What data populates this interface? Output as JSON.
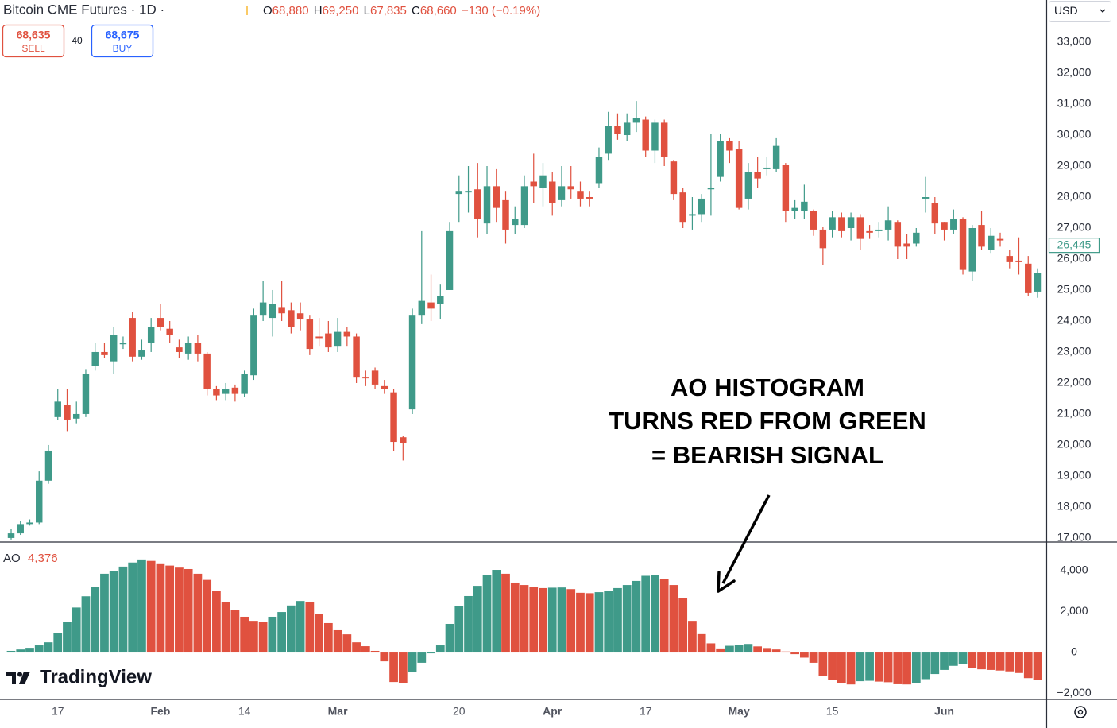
{
  "header": {
    "title": "Bitcoin CME Futures · 1D ·",
    "ohlc": [
      {
        "key": "O",
        "value": "68,880"
      },
      {
        "key": "H",
        "value": "69,250"
      },
      {
        "key": "L",
        "value": "67,835"
      },
      {
        "key": "C",
        "value": "68,660"
      }
    ],
    "change": "−130 (−0.19%)",
    "sell_price": "68,635",
    "sell_label": "SELL",
    "spread": "40",
    "buy_price": "68,675",
    "buy_label": "BUY",
    "currency": "USD",
    "logo": "TradingView",
    "annotation": [
      "AO HISTOGRAM",
      "TURNS RED FROM GREEN",
      "= BEARISH SIGNAL"
    ]
  },
  "chart_data": [
    {
      "type": "candlestick",
      "up_color": "#3f9a89",
      "down_color": "#e0513f",
      "categories": [
        null,
        null,
        null,
        null,
        null,
        "17",
        null,
        null,
        null,
        null,
        null,
        null,
        null,
        null,
        null,
        null,
        "Feb",
        null,
        null,
        null,
        null,
        null,
        null,
        null,
        null,
        "14",
        null,
        null,
        null,
        null,
        null,
        null,
        null,
        null,
        null,
        "Mar",
        null,
        null,
        null,
        null,
        null,
        null,
        null,
        null,
        null,
        null,
        null,
        null,
        "20",
        null,
        null,
        null,
        null,
        null,
        null,
        null,
        null,
        null,
        "Apr",
        null,
        null,
        null,
        null,
        null,
        null,
        null,
        null,
        null,
        "17",
        null,
        null,
        null,
        null,
        null,
        null,
        null,
        null,
        null,
        "May",
        null,
        null,
        null,
        null,
        null,
        null,
        null,
        null,
        null,
        "15",
        null,
        null,
        null,
        null,
        null,
        null,
        null,
        null,
        null,
        null,
        null,
        "Jun",
        null,
        null,
        null,
        null,
        null,
        null,
        null,
        null,
        null,
        null
      ],
      "open": [
        17000,
        17150,
        17450,
        17500,
        18850,
        20900,
        21300,
        20850,
        21000,
        22550,
        23000,
        22700,
        23250,
        24100,
        22850,
        23300,
        24100,
        23750,
        23150,
        22950,
        23300,
        22950,
        21800,
        21650,
        21850,
        21650,
        22250,
        24200,
        24100,
        24450,
        24350,
        24250,
        24050,
        23500,
        23600,
        23200,
        23650,
        23500,
        22200,
        22400,
        21900,
        21700,
        20250,
        21150,
        24200,
        24600,
        24550,
        25000,
        28100,
        28150,
        28250,
        27150,
        28350,
        27900,
        27100,
        27100,
        28500,
        28300,
        28500,
        27900,
        28350,
        28200,
        28000,
        28450,
        29400,
        30300,
        30000,
        30400,
        30500,
        29500,
        30400,
        29150,
        28150,
        27400,
        27450,
        28250,
        28650,
        29800,
        29550,
        27950,
        28800,
        28900,
        28900,
        29050,
        27550,
        27550,
        27550,
        26950,
        26950,
        27350,
        27000,
        27350,
        26900,
        26900,
        26950,
        27200,
        26500,
        26500,
        27950,
        27800,
        27200,
        26950,
        27300,
        25600,
        27100,
        26300,
        26650,
        26100,
        25950,
        25850,
        24950
      ],
      "high": [
        17300,
        17550,
        17600,
        19150,
        20000,
        21800,
        21800,
        21400,
        22450,
        23300,
        23300,
        23800,
        23500,
        24300,
        23400,
        24100,
        24550,
        24000,
        23400,
        23500,
        23550,
        23000,
        21900,
        22000,
        21950,
        22400,
        24400,
        25300,
        25000,
        25300,
        24600,
        24600,
        24200,
        24100,
        24000,
        24100,
        23800,
        23600,
        22400,
        22500,
        22100,
        21800,
        20300,
        24400,
        26900,
        25500,
        25200,
        27200,
        28700,
        29000,
        29100,
        29000,
        28900,
        28200,
        27700,
        28700,
        29400,
        29100,
        28800,
        29000,
        29000,
        28500,
        28200,
        29600,
        30750,
        30700,
        30700,
        31100,
        30600,
        30500,
        30500,
        29200,
        28300,
        28000,
        28100,
        30050,
        30050,
        29900,
        29800,
        29100,
        29300,
        29300,
        29900,
        29100,
        27900,
        28400,
        27600,
        27050,
        27550,
        27500,
        27500,
        27450,
        27100,
        27200,
        27700,
        27250,
        26800,
        27000,
        28650,
        28000,
        27200,
        27600,
        27350,
        27100,
        27550,
        27000,
        26850,
        26300,
        26700,
        26100,
        25700
      ],
      "low": [
        16950,
        17100,
        17400,
        17450,
        18750,
        20800,
        20450,
        20700,
        20900,
        22400,
        22800,
        22300,
        23100,
        22700,
        22750,
        23000,
        23700,
        23300,
        22800,
        22750,
        22700,
        21600,
        21450,
        21450,
        21400,
        21550,
        22100,
        24000,
        23500,
        24000,
        23600,
        23700,
        22900,
        23200,
        23000,
        23000,
        23200,
        22000,
        21900,
        21800,
        21650,
        19800,
        19500,
        21000,
        23900,
        24000,
        24050,
        25000,
        27200,
        27500,
        26700,
        26800,
        27200,
        26500,
        26800,
        27000,
        27800,
        27700,
        27400,
        27700,
        27950,
        27700,
        27700,
        28300,
        29200,
        29850,
        29800,
        30100,
        29300,
        29100,
        29000,
        27900,
        27000,
        26950,
        27200,
        27400,
        28500,
        29100,
        27600,
        27600,
        28300,
        28700,
        28800,
        27200,
        27300,
        27300,
        26750,
        25800,
        26700,
        26700,
        26600,
        26300,
        26650,
        26700,
        26600,
        26000,
        26000,
        26400,
        27500,
        26800,
        26600,
        26800,
        25500,
        25300,
        26300,
        26200,
        26400,
        25700,
        25500,
        24800,
        24750
      ],
      "close": [
        17150,
        17450,
        17500,
        18850,
        19820,
        21400,
        20820,
        21000,
        22300,
        23000,
        22900,
        23550,
        23300,
        22850,
        23050,
        23800,
        23800,
        23550,
        23000,
        23300,
        22950,
        21800,
        21600,
        21800,
        21650,
        22300,
        24200,
        24600,
        24550,
        24250,
        23800,
        24050,
        23100,
        23450,
        23150,
        23650,
        23500,
        22200,
        22150,
        21950,
        21800,
        20100,
        20050,
        24200,
        24650,
        24400,
        24800,
        26900,
        28200,
        28200,
        27300,
        28350,
        27650,
        26950,
        27300,
        28350,
        28350,
        28700,
        27800,
        28350,
        28250,
        27950,
        27950,
        29300,
        30300,
        30050,
        30400,
        30550,
        29500,
        30400,
        29300,
        28100,
        27200,
        27450,
        27950,
        28300,
        29800,
        29500,
        27650,
        28800,
        28600,
        28950,
        29650,
        27550,
        27650,
        27850,
        26950,
        26350,
        27350,
        26900,
        27350,
        26650,
        26850,
        26950,
        27250,
        26400,
        26400,
        26850,
        28000,
        27150,
        26950,
        27300,
        25650,
        27000,
        26400,
        26750,
        26600,
        25900,
        25900,
        24900,
        25550
      ],
      "last_price": {
        "value": 26445,
        "label": "26,445"
      },
      "ylim": [
        16870,
        34360
      ],
      "yticks": [
        {
          "value": 17000,
          "label": "17,000"
        },
        {
          "value": 18000,
          "label": "18,000"
        },
        {
          "value": 19000,
          "label": "19,000"
        },
        {
          "value": 20000,
          "label": "20,000"
        },
        {
          "value": 21000,
          "label": "21,000"
        },
        {
          "value": 22000,
          "label": "22,000"
        },
        {
          "value": 23000,
          "label": "23,000"
        },
        {
          "value": 24000,
          "label": "24,000"
        },
        {
          "value": 25000,
          "label": "25,000"
        },
        {
          "value": 26000,
          "label": "26,000"
        },
        {
          "value": 27000,
          "label": "27,000"
        },
        {
          "value": 28000,
          "label": "28,000"
        },
        {
          "value": 29000,
          "label": "29,000"
        },
        {
          "value": 30000,
          "label": "30,000"
        },
        {
          "value": 31000,
          "label": "31,000"
        },
        {
          "value": 32000,
          "label": "32,000"
        },
        {
          "value": 33000,
          "label": "33,000"
        }
      ],
      "grid": false
    },
    {
      "type": "bar",
      "title": "AO",
      "current_label": "4,376",
      "up_color": "#3f9a89",
      "down_color": "#e0513f",
      "values": [
        80,
        150,
        230,
        350,
        500,
        970,
        1500,
        2200,
        2750,
        3200,
        3850,
        4000,
        4200,
        4400,
        4550,
        4480,
        4320,
        4250,
        4150,
        4080,
        3850,
        3550,
        3030,
        2480,
        2060,
        1750,
        1550,
        1500,
        1750,
        1980,
        2300,
        2520,
        2480,
        1900,
        1440,
        1090,
        890,
        500,
        310,
        80,
        -430,
        -1440,
        -1510,
        -970,
        -500,
        -40,
        350,
        1400,
        2290,
        2760,
        3260,
        3770,
        4040,
        3850,
        3420,
        3300,
        3220,
        3150,
        3170,
        3180,
        3100,
        2920,
        2900,
        2950,
        3000,
        3150,
        3300,
        3500,
        3750,
        3780,
        3600,
        3300,
        2650,
        1550,
        900,
        450,
        200,
        330,
        380,
        420,
        300,
        220,
        150,
        50,
        -80,
        -250,
        -500,
        -1150,
        -1350,
        -1500,
        -1560,
        -1400,
        -1380,
        -1420,
        -1450,
        -1550,
        -1560,
        -1500,
        -1300,
        -1050,
        -850,
        -650,
        -550,
        -750,
        -820,
        -850,
        -880,
        -920,
        -1000,
        -1250,
        -1350
      ],
      "ylim": [
        -2290,
        5400
      ],
      "yticks": [
        {
          "value": -2000,
          "label": "−2,000"
        },
        0,
        {
          "value": 2000,
          "label": "2,000"
        },
        {
          "value": 4000,
          "label": "4,000"
        }
      ],
      "grid": false
    }
  ]
}
